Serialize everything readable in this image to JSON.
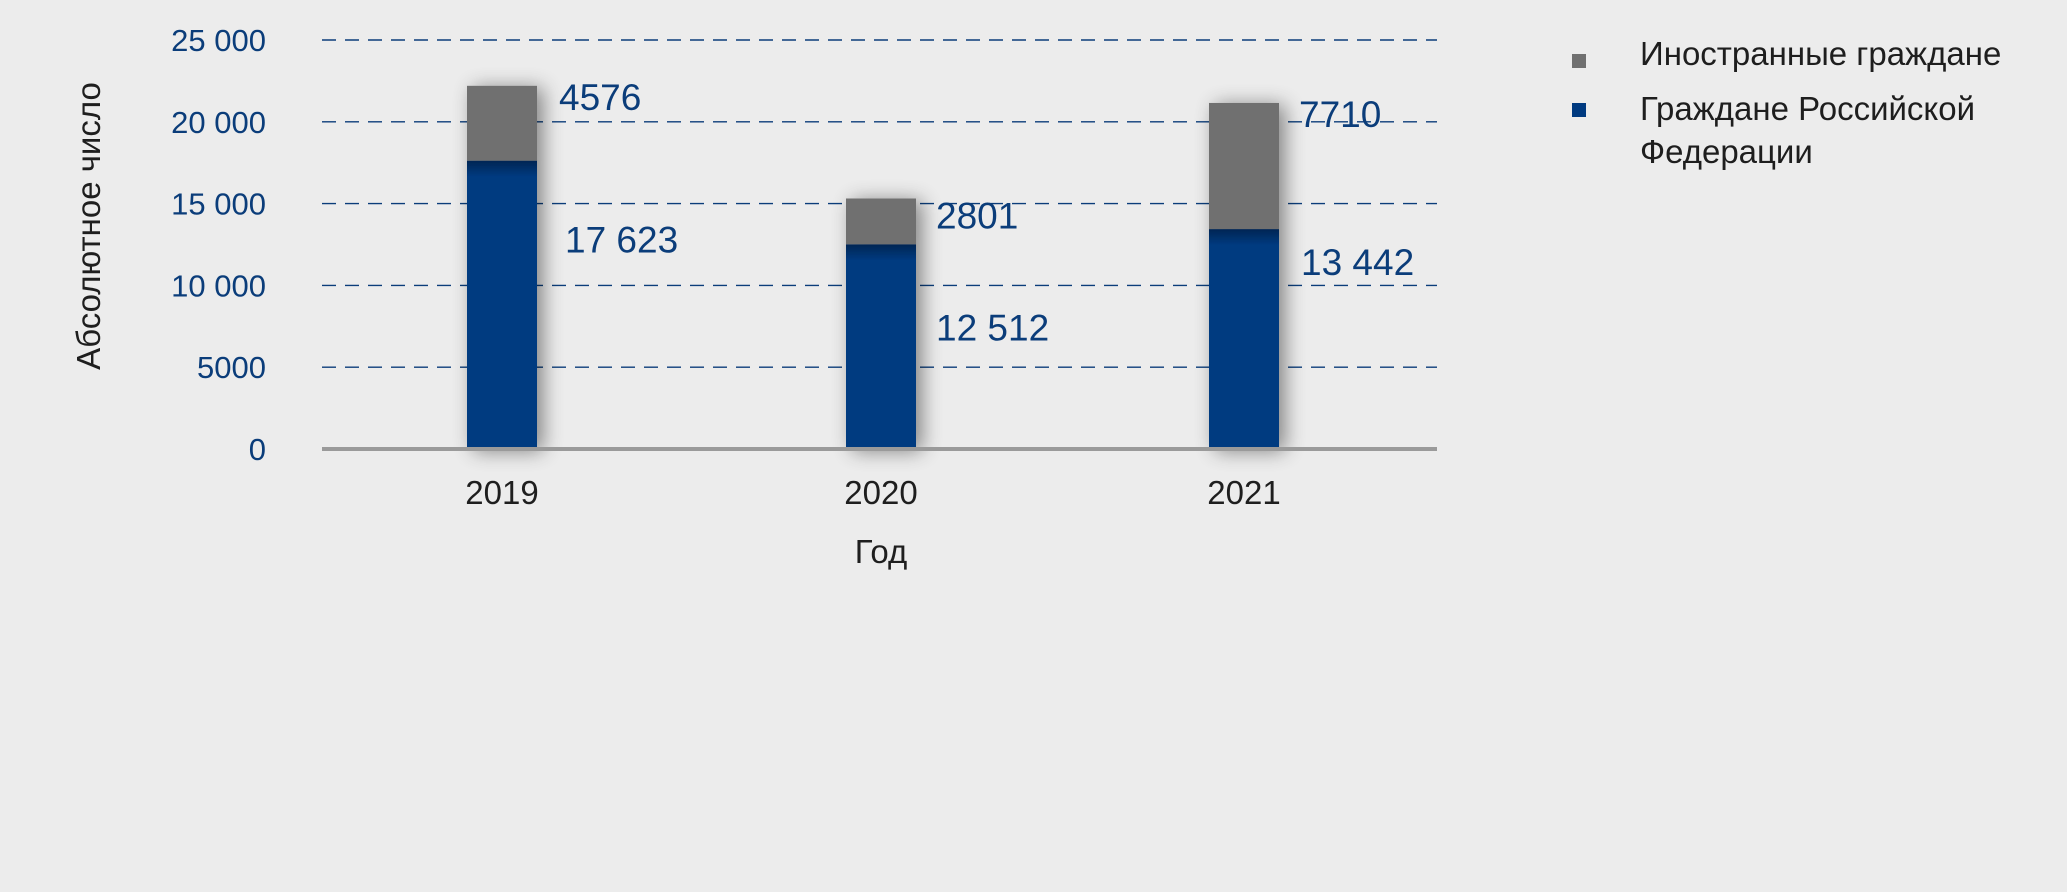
{
  "chart_data": {
    "type": "bar",
    "stacked": true,
    "categories": [
      "2019",
      "2020",
      "2021"
    ],
    "series": [
      {
        "name": "Граждане Российской Федерации",
        "values": [
          17623,
          12512,
          13442
        ],
        "labels": [
          "17 623",
          "12 512",
          "13 442"
        ],
        "color": "#003a80"
      },
      {
        "name": "Иностранные граждане",
        "values": [
          4576,
          2801,
          7710
        ],
        "labels": [
          "4576",
          "2801",
          "7710"
        ],
        "color": "#707070"
      }
    ],
    "xlabel": "Год",
    "ylabel": "Абсолютное число",
    "ylim": [
      0,
      25000
    ],
    "yticks": [
      {
        "value": 0,
        "label": "0"
      },
      {
        "value": 5000,
        "label": "5000"
      },
      {
        "value": 10000,
        "label": "10 000"
      },
      {
        "value": 15000,
        "label": "15 000"
      },
      {
        "value": 20000,
        "label": "20 000"
      },
      {
        "value": 25000,
        "label": "25 000"
      }
    ],
    "grid": "dashed horizontal",
    "legend": {
      "position": "top-right",
      "items": [
        {
          "label_lines": [
            "Иностранные граждане"
          ],
          "color": "#707070"
        },
        {
          "label_lines": [
            "Граждане Российской",
            "Федерации"
          ],
          "color": "#003a80"
        }
      ]
    },
    "colors": {
      "tick_text": "#0b3d7a",
      "axis_text": "#1e1e1e",
      "grid": "#0b3d7a",
      "baseline": "#9a9a9a",
      "background": "#ececec"
    }
  }
}
